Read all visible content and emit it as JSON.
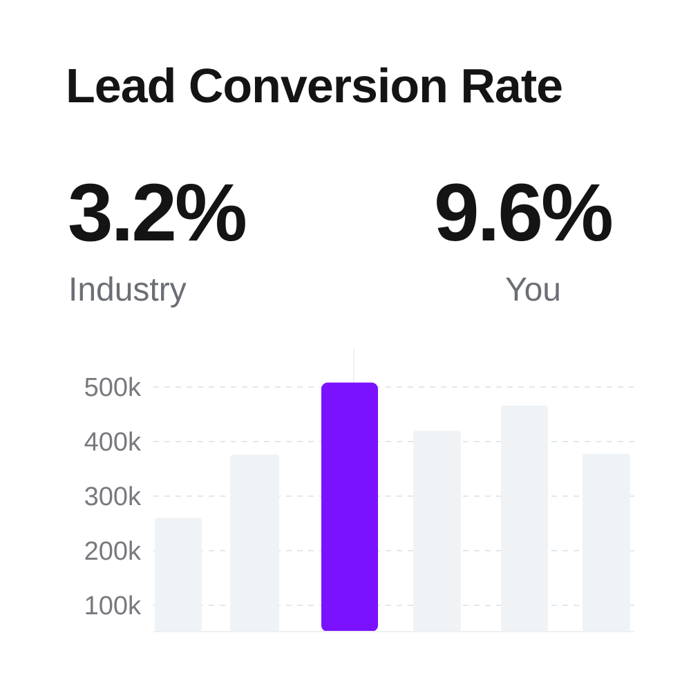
{
  "title": "Lead Conversion Rate",
  "stats": [
    {
      "value": "3.2%",
      "label": "Industry"
    },
    {
      "value": "9.6%",
      "label": "You"
    }
  ],
  "colors": {
    "highlight": "#7a12ff",
    "bar": "#f0f3f5",
    "grid": "#e4e7ea"
  },
  "chart_data": {
    "type": "bar",
    "title": "",
    "xlabel": "",
    "ylabel": "",
    "yticks": [
      100000,
      200000,
      300000,
      400000,
      500000
    ],
    "ytick_labels": [
      "100k",
      "200k",
      "300k",
      "400k",
      "500k"
    ],
    "values": [
      260000,
      376000,
      508000,
      420000,
      466000,
      378000
    ],
    "highlight_index": 2,
    "ylim": [
      52000,
      510000
    ],
    "grid": true
  }
}
